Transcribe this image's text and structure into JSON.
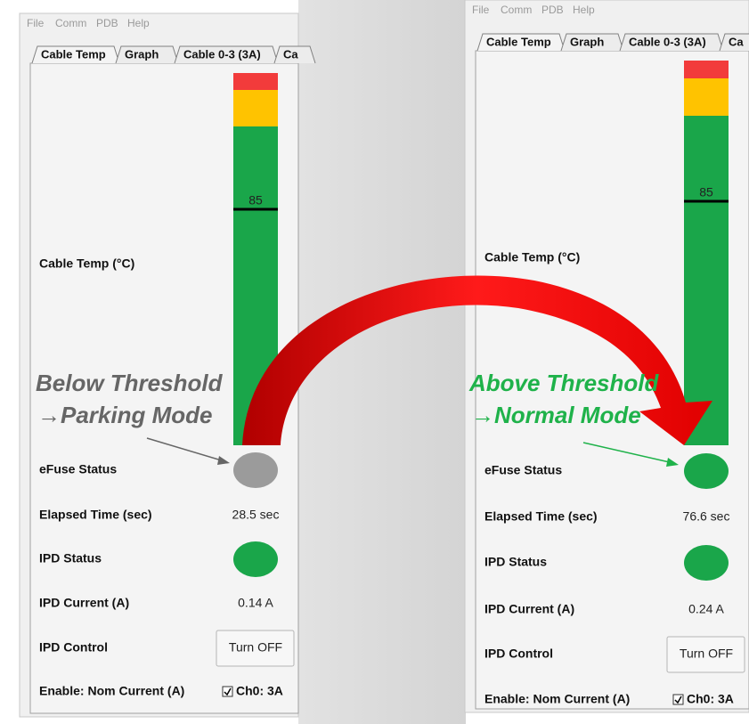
{
  "panels": [
    {
      "menu": [
        "File",
        "Comm",
        "PDB",
        "Help"
      ],
      "tabs": [
        "Cable Temp",
        "Graph",
        "Cable 0-3 (3A)",
        "Ca"
      ],
      "gauge_label": "Cable Temp (°C)",
      "gauge_marker": "85",
      "rows": [
        {
          "label": "eFuse Status",
          "indicator": "#9b9b9b"
        },
        {
          "label": "Elapsed Time (sec)",
          "value": "28.5 sec"
        },
        {
          "label": "IPD Status",
          "indicator": "#1aa64a"
        },
        {
          "label": "IPD Current (A)",
          "value": "0.14 A"
        },
        {
          "label": "IPD Control",
          "button": "Turn OFF"
        },
        {
          "label": "Enable: Nom Current (A)",
          "checkbox": "Ch0: 3A"
        }
      ]
    },
    {
      "menu": [
        "File",
        "Comm",
        "PDB",
        "Help"
      ],
      "tabs": [
        "Cable Temp",
        "Graph",
        "Cable 0-3 (3A)",
        "Ca"
      ],
      "gauge_label": "Cable Temp (°C)",
      "gauge_marker": "85",
      "rows": [
        {
          "label": "eFuse Status",
          "indicator": "#1aa64a"
        },
        {
          "label": "Elapsed Time (sec)",
          "value": "76.6 sec"
        },
        {
          "label": "IPD Status",
          "indicator": "#1aa64a"
        },
        {
          "label": "IPD Current (A)",
          "value": "0.24 A"
        },
        {
          "label": "IPD Control",
          "button": "Turn OFF"
        },
        {
          "label": "Enable: Nom Current (A)",
          "checkbox": "Ch0: 3A"
        }
      ]
    }
  ],
  "annotations": [
    {
      "lines": [
        "Below Threshold",
        "→Parking Mode"
      ],
      "color": "#666666"
    },
    {
      "lines": [
        "Above Threshold",
        "→Normal Mode"
      ],
      "color": "#1fb24a"
    }
  ]
}
